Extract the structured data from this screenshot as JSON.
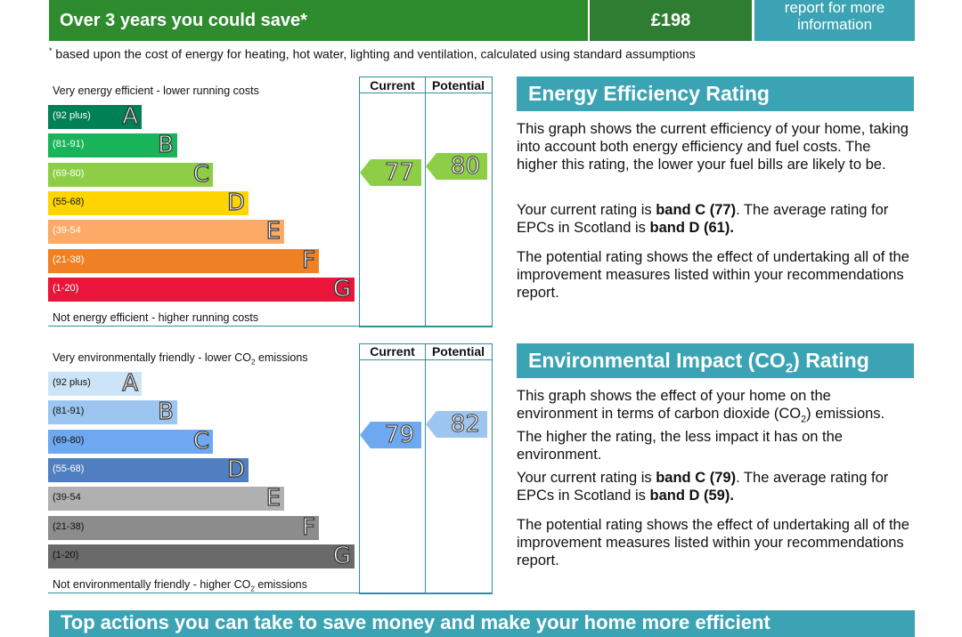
{
  "savings": {
    "label": "Over 3 years you could save*",
    "value": "£198",
    "link_line1": "report for more",
    "link_line2": "information",
    "footnote_star": "*",
    "footnote_text": "based upon the cost of energy for heating, hot water, lighting and ventilation, calculated using standard assumptions"
  },
  "energy_chart": {
    "top_label": "Very energy efficient - lower running costs",
    "bottom_label": "Not energy efficient - higher running costs",
    "col_current": "Current",
    "col_potential": "Potential",
    "bands": [
      {
        "range": "(92 plus)",
        "letter": "A",
        "color": "#008054"
      },
      {
        "range": "(81-91)",
        "letter": "B",
        "color": "#19b459"
      },
      {
        "range": "(69-80)",
        "letter": "C",
        "color": "#8dce46"
      },
      {
        "range": "(55-68)",
        "letter": "D",
        "color": "#ffd500"
      },
      {
        "range": "(39-54",
        "letter": "E",
        "color": "#fcaa65"
      },
      {
        "range": "(21-38)",
        "letter": "F",
        "color": "#ef8023"
      },
      {
        "range": "(1-20)",
        "letter": "G",
        "color": "#e9153b"
      }
    ],
    "current": {
      "value": "77",
      "band": "C",
      "color": "#8dce46"
    },
    "potential": {
      "value": "80",
      "band": "C",
      "color": "#8dce46"
    }
  },
  "co2_chart": {
    "top_label_pre": "Very environmentally friendly - lower CO",
    "top_label_sub": "2",
    "top_label_post": " emissions",
    "bottom_label_pre": "Not environmentally friendly - higher CO",
    "bottom_label_sub": "2",
    "bottom_label_post": " emissions",
    "col_current": "Current",
    "col_potential": "Potential",
    "bands": [
      {
        "range": "(92 plus)",
        "letter": "A",
        "color": "#cde4f6"
      },
      {
        "range": "(81-91)",
        "letter": "B",
        "color": "#9cc5ef"
      },
      {
        "range": "(69-80)",
        "letter": "C",
        "color": "#6da8f0"
      },
      {
        "range": "(55-68)",
        "letter": "D",
        "color": "#4f7fc0"
      },
      {
        "range": "(39-54",
        "letter": "E",
        "color": "#b0b0b0"
      },
      {
        "range": "(21-38)",
        "letter": "F",
        "color": "#8c8c8c"
      },
      {
        "range": "(1-20)",
        "letter": "G",
        "color": "#6a6a6a"
      }
    ],
    "current": {
      "value": "79",
      "band": "C",
      "color": "#6da8f0"
    },
    "potential": {
      "value": "82",
      "band": "B",
      "color": "#9cc5ef"
    }
  },
  "energy_section": {
    "title": "Energy Efficiency Rating",
    "p1": "This graph shows the current efficiency of your home, taking into account both energy efficiency and fuel costs. The higher this rating, the lower your fuel bills are likely to be.",
    "p2_pre": "Your current rating is ",
    "p2_b1": "band C (77)",
    "p2_mid": ". The average rating for EPCs in Scotland is ",
    "p2_b2": "band D (61).",
    "p3": "The potential rating shows the effect of undertaking all of the improvement measures listed within your recommendations report."
  },
  "co2_section": {
    "title_pre": "Environmental Impact (CO",
    "title_sub": "2",
    "title_post": ") Rating",
    "p1_pre": "This graph shows the effect of your home on the environment in terms of carbon dioxide (CO",
    "p1_sub": "2",
    "p1_post": ") emissions. The higher the rating, the less impact it has on the environment.",
    "p2_pre": "Your current rating is ",
    "p2_b1": "band C (79)",
    "p2_mid": ". The average rating for EPCs in Scotland is ",
    "p2_b2": "band D (59).",
    "p3": "The potential rating shows the effect of undertaking all of the improvement measures listed within your recommendations report."
  },
  "bottom_bar": {
    "title": "Top actions you can take to save money and make your home more efficient"
  }
}
